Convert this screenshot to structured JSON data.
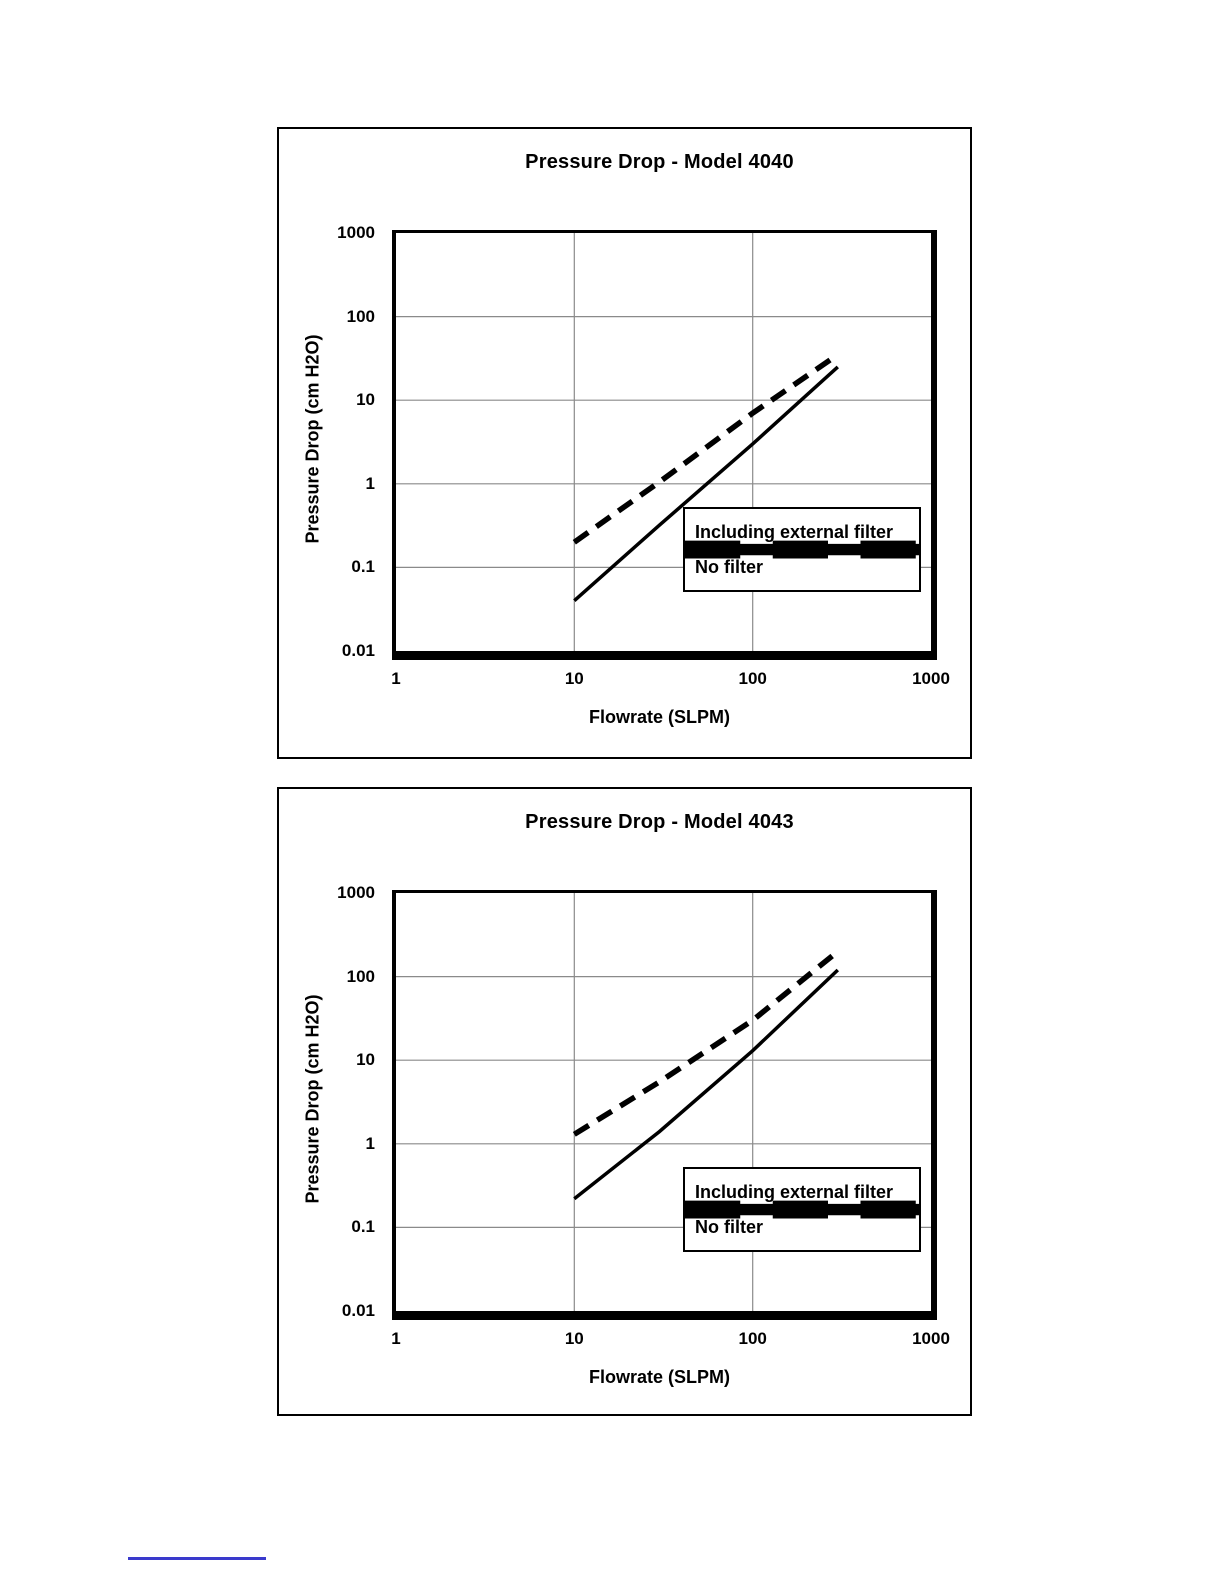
{
  "page": {
    "footer_rule_color": "#3a3acc"
  },
  "chart_data": [
    {
      "type": "line",
      "title": "Pressure Drop - Model 4040",
      "xlabel": "Flowrate (SLPM)",
      "ylabel": "Pressure Drop (cm H2O)",
      "x_scale": "log",
      "y_scale": "log",
      "xlim": [
        1,
        1000
      ],
      "ylim": [
        0.01,
        1000
      ],
      "x_ticks": [
        "1",
        "10",
        "100",
        "1000"
      ],
      "y_ticks": [
        "1000",
        "100",
        "10",
        "1",
        "0.1",
        "0.01"
      ],
      "x_gridlines": [
        10,
        100
      ],
      "y_gridlines": [
        0.1,
        1,
        10,
        100
      ],
      "grid": true,
      "legend_position": "lower-right",
      "series": [
        {
          "name": "Including external filter",
          "style": "dashed",
          "points": [
            [
              10,
              0.2
            ],
            [
              30,
              1.05
            ],
            [
              100,
              7
            ],
            [
              300,
              35
            ]
          ]
        },
        {
          "name": "No filter",
          "style": "solid",
          "points": [
            [
              10,
              0.04
            ],
            [
              30,
              0.32
            ],
            [
              100,
              3
            ],
            [
              300,
              25
            ]
          ]
        }
      ]
    },
    {
      "type": "line",
      "title": "Pressure Drop - Model 4043",
      "xlabel": "Flowrate (SLPM)",
      "ylabel": "Pressure Drop (cm H2O)",
      "x_scale": "log",
      "y_scale": "log",
      "xlim": [
        1,
        1000
      ],
      "ylim": [
        0.01,
        1000
      ],
      "x_ticks": [
        "1",
        "10",
        "100",
        "1000"
      ],
      "y_ticks": [
        "1000",
        "100",
        "10",
        "1",
        "0.1",
        "0.01"
      ],
      "x_gridlines": [
        10,
        100
      ],
      "y_gridlines": [
        0.1,
        1,
        10,
        100
      ],
      "grid": true,
      "legend_position": "lower-right",
      "series": [
        {
          "name": "Including external filter",
          "style": "dashed",
          "points": [
            [
              10,
              1.3
            ],
            [
              30,
              5.5
            ],
            [
              100,
              30
            ],
            [
              300,
              200
            ]
          ]
        },
        {
          "name": "No filter",
          "style": "solid",
          "points": [
            [
              10,
              0.22
            ],
            [
              30,
              1.4
            ],
            [
              100,
              13
            ],
            [
              300,
              120
            ]
          ]
        }
      ]
    }
  ]
}
